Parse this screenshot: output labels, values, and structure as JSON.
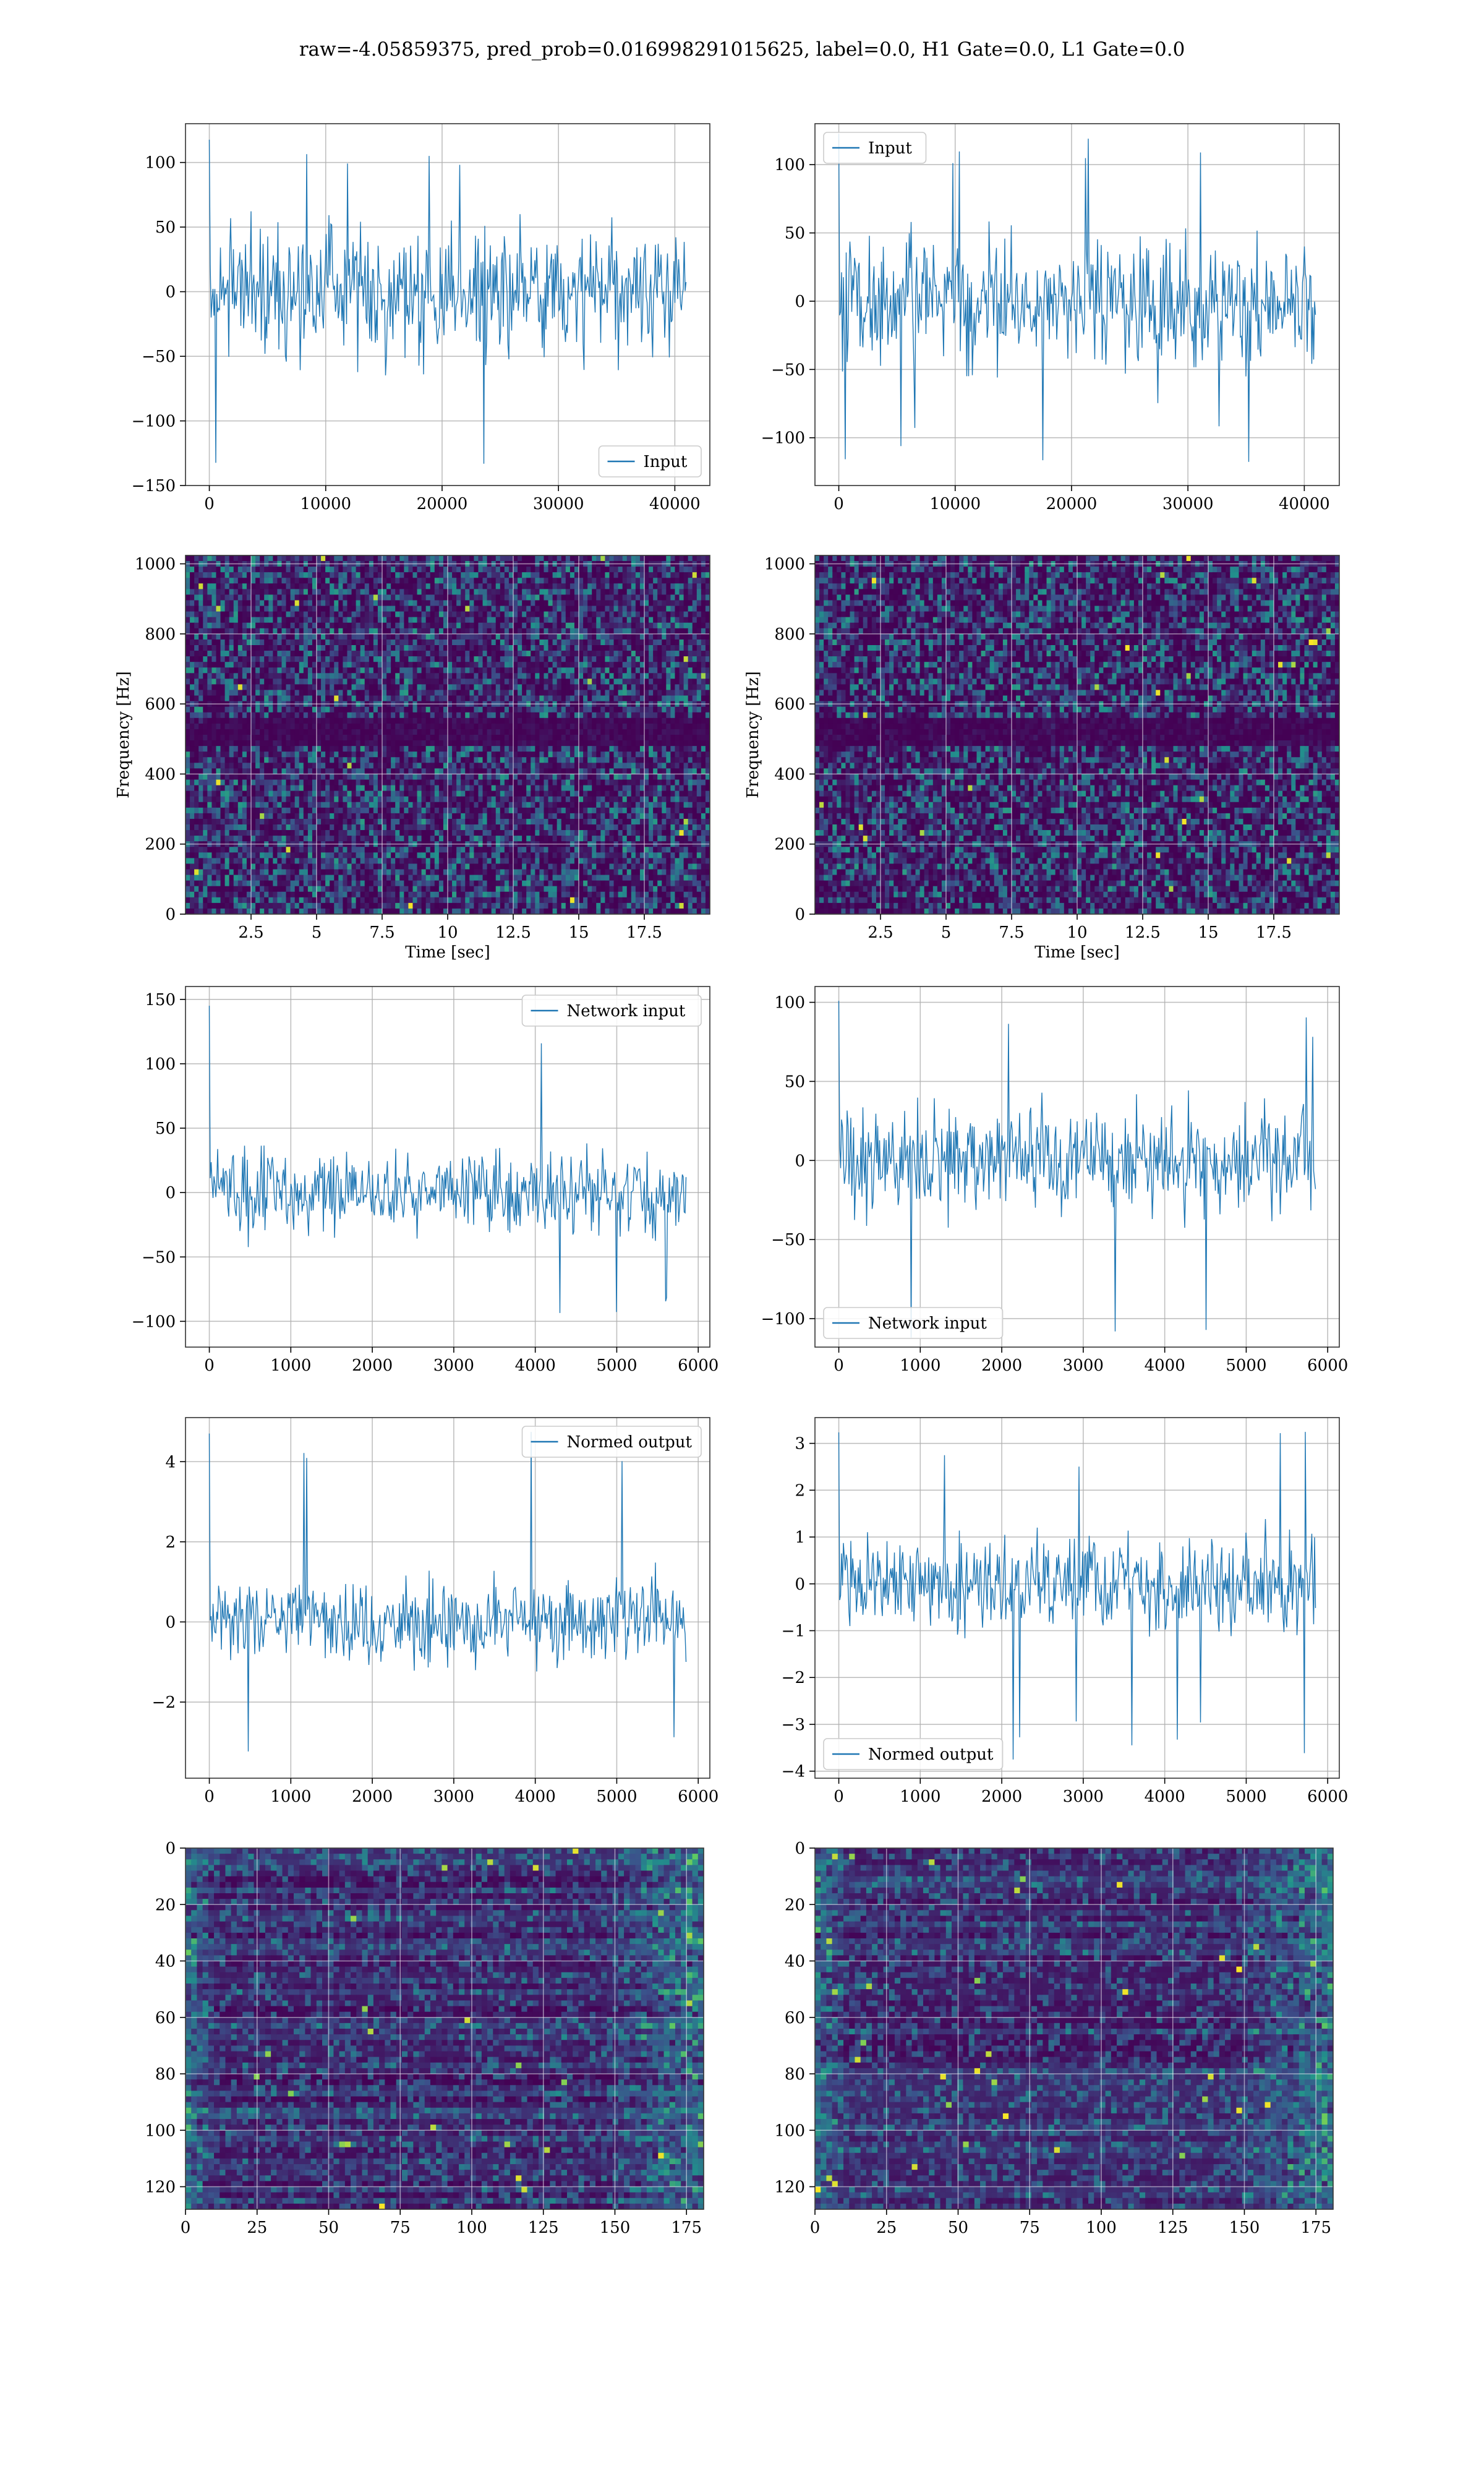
{
  "suptitle": "raw=-4.05859375, pred_prob=0.016998291015625, label=0.0, H1 Gate=0.0, L1 Gate=0.0",
  "colors": {
    "line": "#1f77b4",
    "viridis_low": "#440154",
    "viridis_mid": "#21918c",
    "viridis_high": "#fde725",
    "grid": "#b0b0b0"
  },
  "chart_data": [
    {
      "id": "input-h1",
      "type": "line",
      "series": [
        {
          "name": "Input"
        }
      ],
      "legend": "lower right",
      "x_range": [
        0,
        40960
      ],
      "y_range": [
        -150,
        130
      ],
      "ylim_shown": [
        -150,
        130
      ],
      "xticks": [
        0,
        10000,
        20000,
        30000,
        40000
      ],
      "yticks": [
        -150,
        -100,
        -50,
        0,
        50,
        100
      ],
      "envelope": {
        "core": [
          -60,
          60
        ],
        "peaks": [
          -138,
          120
        ]
      },
      "grid": true
    },
    {
      "id": "input-l1",
      "type": "line",
      "series": [
        {
          "name": "Input"
        }
      ],
      "legend": "upper left",
      "x_range": [
        0,
        40960
      ],
      "y_range": [
        -135,
        130
      ],
      "xticks": [
        0,
        10000,
        20000,
        30000,
        40000
      ],
      "yticks": [
        -100,
        -50,
        0,
        50,
        100
      ],
      "envelope": {
        "core": [
          -60,
          60
        ],
        "peaks": [
          -122,
          125
        ]
      },
      "grid": true
    },
    {
      "id": "spectrogram-h1",
      "type": "heatmap",
      "xlabel": "Time [sec]",
      "ylabel": "Frequency [Hz]",
      "x_range": [
        0,
        20
      ],
      "y_range": [
        0,
        1024
      ],
      "xticks": [
        2.5,
        5.0,
        7.5,
        10.0,
        12.5,
        15.0,
        17.5
      ],
      "yticks": [
        0,
        200,
        400,
        600,
        800,
        1000
      ],
      "grid": true
    },
    {
      "id": "spectrogram-l1",
      "type": "heatmap",
      "xlabel": "Time [sec]",
      "ylabel": "Frequency [Hz]",
      "x_range": [
        0,
        20
      ],
      "y_range": [
        0,
        1024
      ],
      "xticks": [
        2.5,
        5.0,
        7.5,
        10.0,
        12.5,
        15.0,
        17.5
      ],
      "yticks": [
        0,
        200,
        400,
        600,
        800,
        1000
      ],
      "grid": true
    },
    {
      "id": "network-input-h1",
      "type": "line",
      "series": [
        {
          "name": "Network input"
        }
      ],
      "legend": "upper right",
      "x_range": [
        0,
        5850
      ],
      "y_range": [
        -120,
        160
      ],
      "xticks": [
        0,
        1000,
        2000,
        3000,
        4000,
        5000,
        6000
      ],
      "yticks": [
        -100,
        -50,
        0,
        50,
        100,
        150
      ],
      "envelope": {
        "core": [
          -38,
          38
        ],
        "peaks": [
          -105,
          148
        ]
      },
      "grid": true
    },
    {
      "id": "network-input-l1",
      "type": "line",
      "series": [
        {
          "name": "Network input"
        }
      ],
      "legend": "lower left",
      "x_range": [
        0,
        5850
      ],
      "y_range": [
        -118,
        110
      ],
      "xticks": [
        0,
        1000,
        2000,
        3000,
        4000,
        5000,
        6000
      ],
      "yticks": [
        -100,
        -50,
        0,
        50,
        100
      ],
      "envelope": {
        "core": [
          -40,
          40
        ],
        "peaks": [
          -115,
          103
        ]
      },
      "grid": true
    },
    {
      "id": "normed-output-h1",
      "type": "line",
      "series": [
        {
          "name": "Normed output"
        }
      ],
      "legend": "upper right",
      "x_range": [
        0,
        5850
      ],
      "y_range": [
        -3.9,
        5.1
      ],
      "xticks": [
        0,
        1000,
        2000,
        3000,
        4000,
        5000,
        6000
      ],
      "yticks": [
        -2,
        0,
        2,
        4
      ],
      "envelope": {
        "core": [
          -1.25,
          1.25
        ],
        "peaks": [
          -3.4,
          4.8
        ]
      },
      "grid": true
    },
    {
      "id": "normed-output-l1",
      "type": "line",
      "series": [
        {
          "name": "Normed output"
        }
      ],
      "legend": "lower left",
      "x_range": [
        0,
        5850
      ],
      "y_range": [
        -4.15,
        3.55
      ],
      "xticks": [
        0,
        1000,
        2000,
        3000,
        4000,
        5000,
        6000
      ],
      "yticks": [
        -4,
        -3,
        -2,
        -1,
        0,
        1,
        2,
        3
      ],
      "envelope": {
        "core": [
          -1.2,
          1.2
        ],
        "peaks": [
          -3.8,
          3.3
        ]
      },
      "grid": true
    },
    {
      "id": "feature-map-h1",
      "type": "heatmap",
      "x_range": [
        0,
        181
      ],
      "y_range": [
        0,
        128
      ],
      "y_inverted": true,
      "xticks": [
        0,
        25,
        50,
        75,
        100,
        125,
        150,
        175
      ],
      "yticks": [
        0,
        20,
        40,
        60,
        80,
        100,
        120
      ],
      "grid": true
    },
    {
      "id": "feature-map-l1",
      "type": "heatmap",
      "x_range": [
        0,
        181
      ],
      "y_range": [
        0,
        128
      ],
      "y_inverted": true,
      "xticks": [
        0,
        25,
        50,
        75,
        100,
        125,
        150,
        175
      ],
      "yticks": [
        0,
        20,
        40,
        60,
        80,
        100,
        120
      ],
      "grid": true
    }
  ]
}
